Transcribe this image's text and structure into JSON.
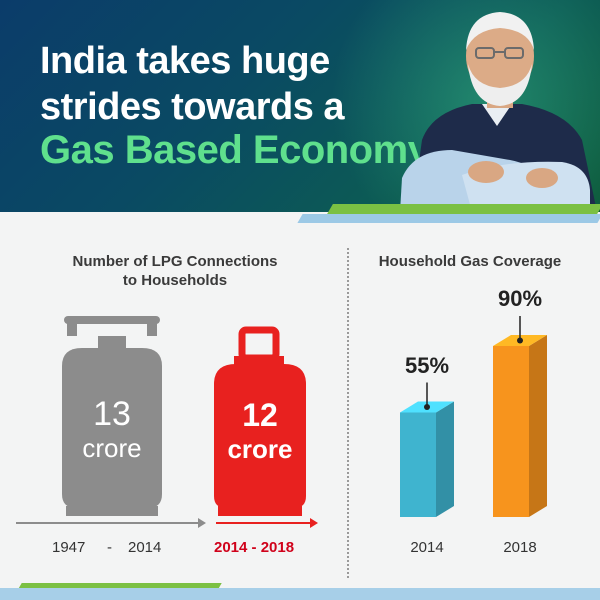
{
  "header": {
    "line1": "India takes huge",
    "line2": "strides towards a",
    "line3": "Gas Based Economy"
  },
  "chart_data": [
    {
      "type": "bar",
      "title": "Number of LPG Connections to Households",
      "title_lines": [
        "Number of LPG Connections",
        "to Households"
      ],
      "categories": [
        "1947 - 2014",
        "2014 - 2018"
      ],
      "category_parts": {
        "start": "1947",
        "dash": "-",
        "end": "2014"
      },
      "values": [
        13,
        12
      ],
      "value_labels": [
        "13",
        "12"
      ],
      "unit": "crore",
      "colors": [
        "#8c8c8c",
        "#e8211f"
      ]
    },
    {
      "type": "bar",
      "title": "Household Gas Coverage",
      "categories": [
        "2014",
        "2018"
      ],
      "values": [
        55,
        90
      ],
      "value_labels": [
        "55%",
        "90%"
      ],
      "ylim": [
        0,
        100
      ],
      "colors": [
        "#3fb4cf",
        "#f7941d"
      ]
    }
  ]
}
